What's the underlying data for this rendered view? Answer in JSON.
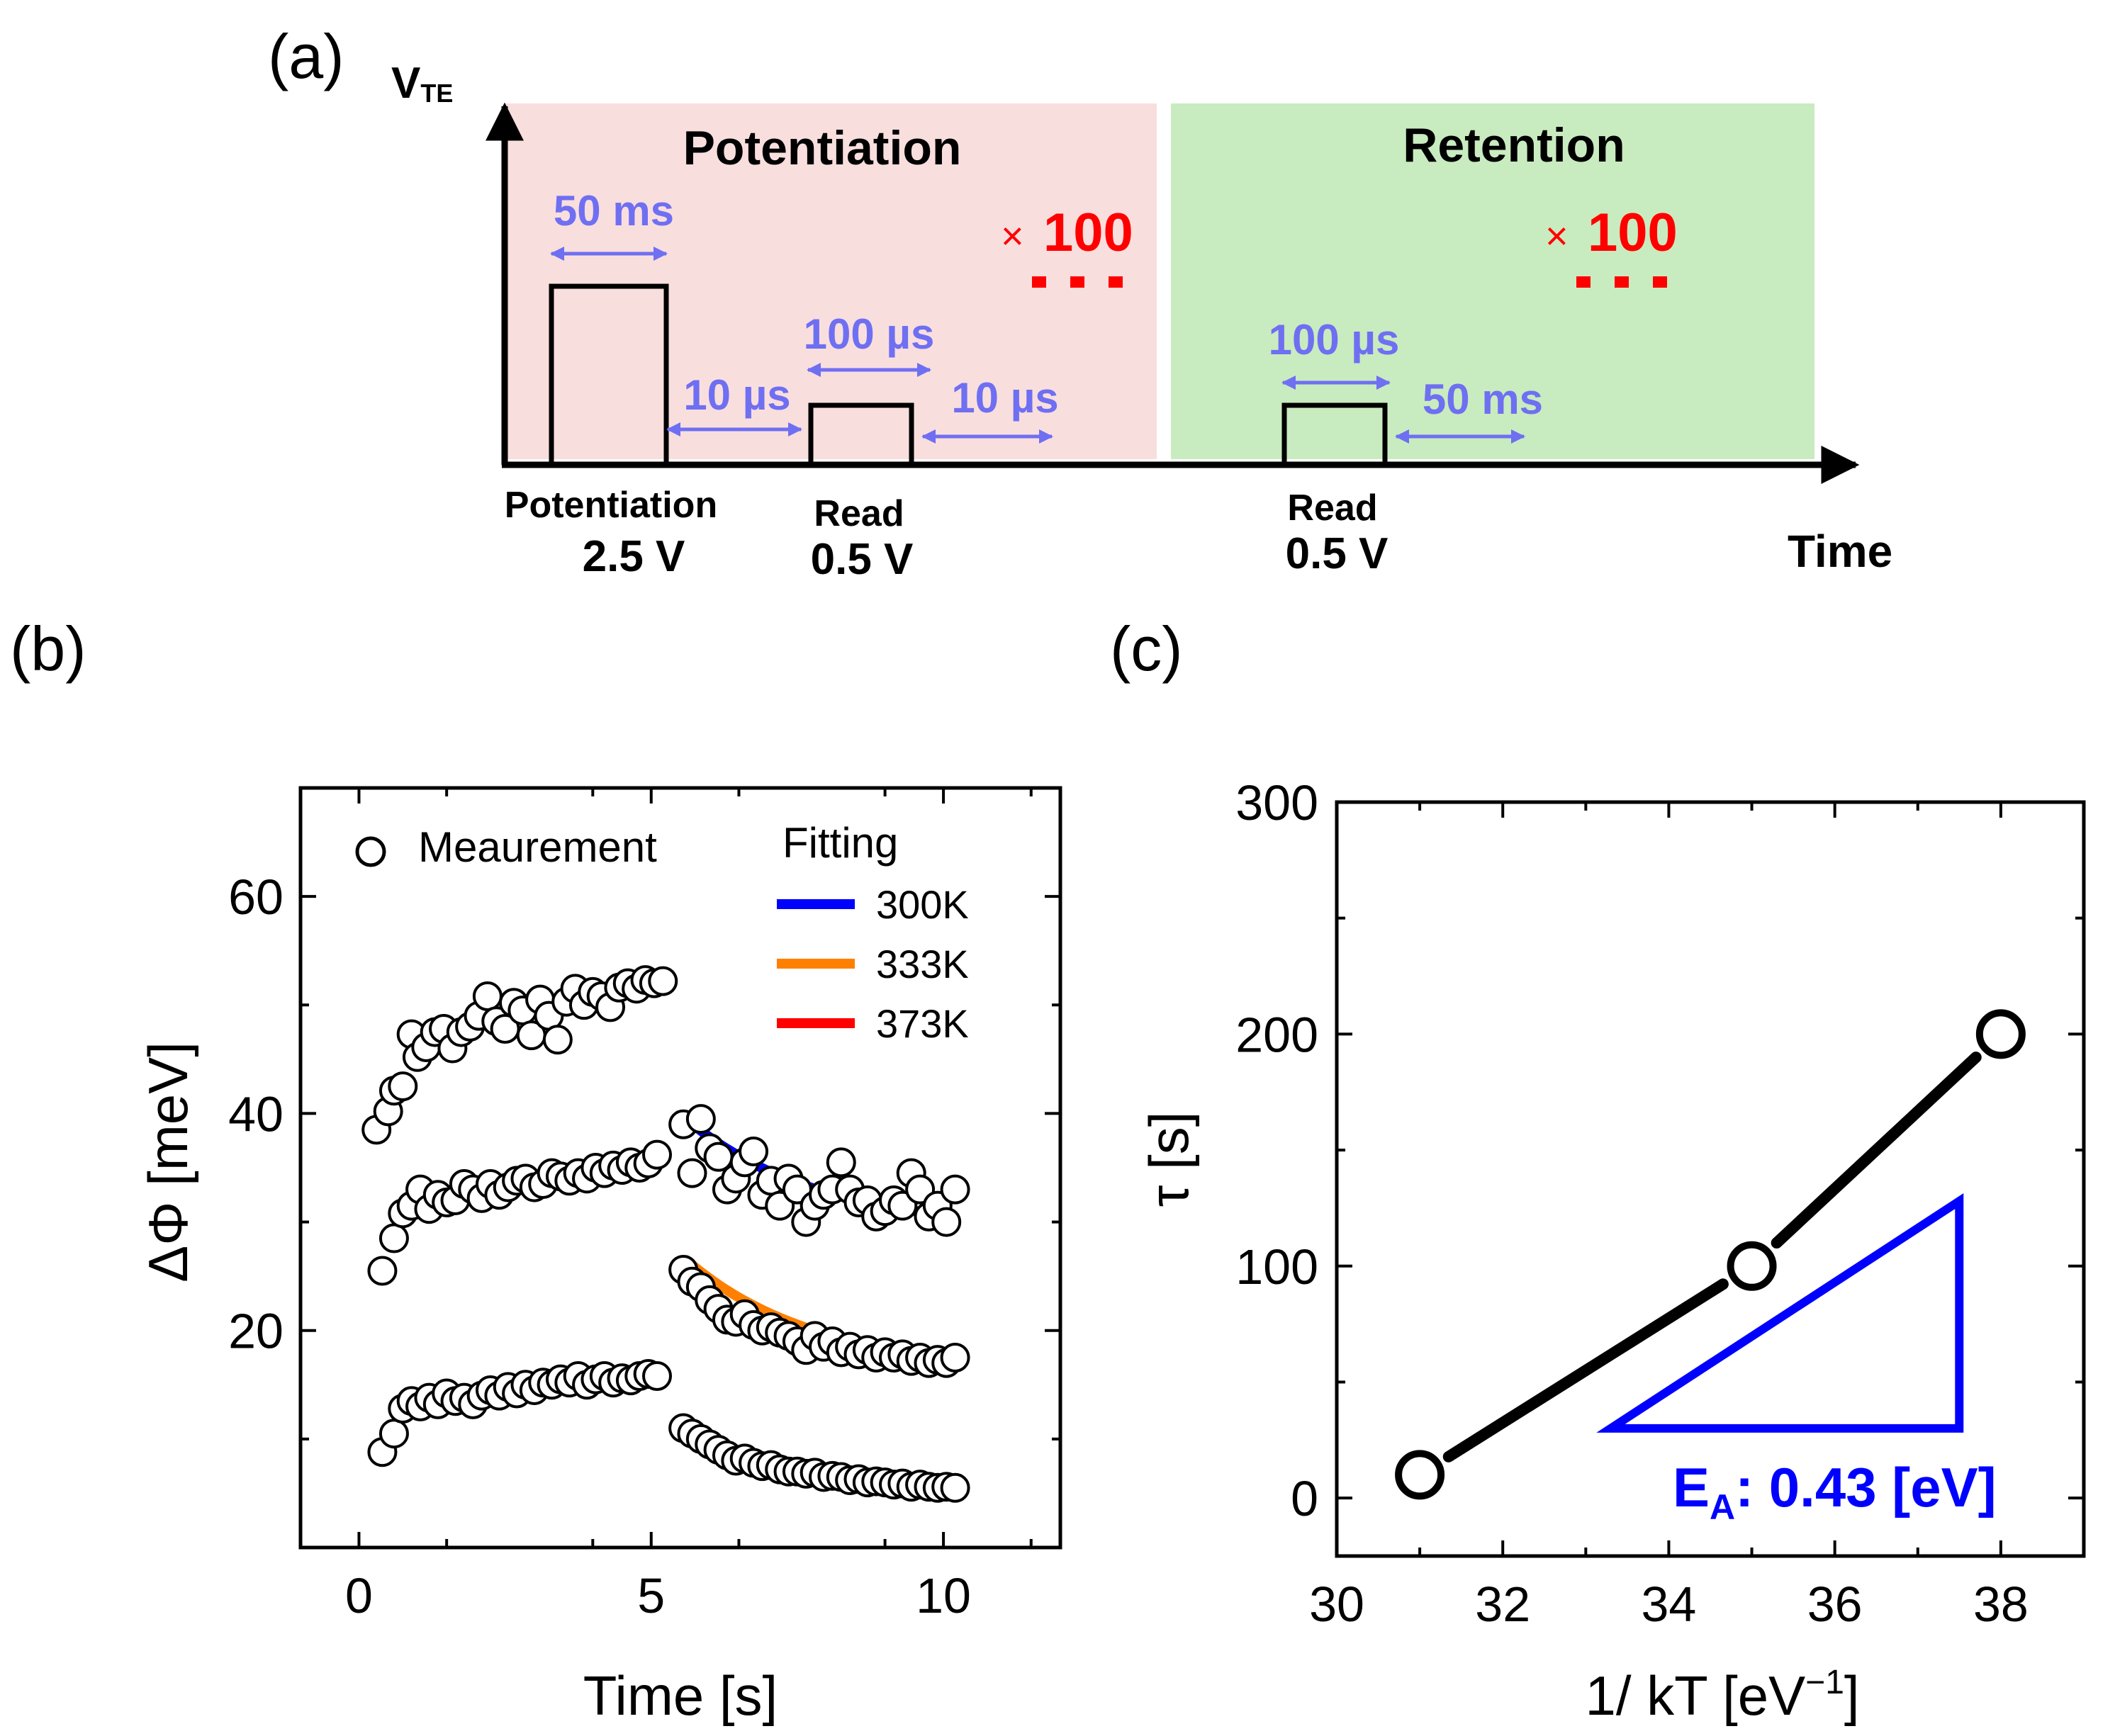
{
  "panel_a": {
    "label": "(a)",
    "y_axis_label": "V",
    "y_axis_sub": "TE",
    "x_axis_label": "Time",
    "colors": {
      "potentiation_bg": "#f9dede",
      "retention_bg": "#c9ebc0",
      "arrow": "#6f6ff2",
      "repeat": "#ff0000"
    },
    "potentiation_title": "Potentiation",
    "retention_title": "Retention",
    "pulse_width_label": "50 ms",
    "gap1_label": "10 µs",
    "read_width_label": "100 µs",
    "gap2_label": "10 µs",
    "pot_repeat_x": "×",
    "pot_repeat_n": "100",
    "ret_read_width_label": "100 µs",
    "ret_gap_label": "50 ms",
    "ret_repeat_x": "×",
    "ret_repeat_n": "100",
    "pulse1_name": "Potentiation",
    "pulse1_volt": "2.5 V",
    "pulse2_name": "Read",
    "pulse2_volt": "0.5 V",
    "pulse3_name": "Read",
    "pulse3_volt": "0.5 V"
  },
  "panel_b": {
    "label": "(b)",
    "legend_meas": "Meaurement",
    "legend_fit_title": "Fitting"
  },
  "panel_c": {
    "label": "(c)",
    "ylabel_tau": "τ",
    "ylabel_unit": "[s]",
    "xlabel_main": "1/ kT [eV",
    "xlabel_sup": "−1",
    "xlabel_end": "]",
    "annotation_main": "E",
    "annotation_sub": "A",
    "annotation_val": ": 0.43 [eV]"
  },
  "chart_data": [
    {
      "type": "scatter",
      "title": "",
      "xlabel": "Time [s]",
      "ylabel": "ΔΦ [meV]",
      "xlim": [
        -1,
        12
      ],
      "ylim": [
        0,
        70
      ],
      "xticks": [
        0,
        5,
        10
      ],
      "yticks": [
        20,
        40,
        60
      ],
      "marker_series": "Meaurement",
      "measurement_series": [
        {
          "name": "300K",
          "x": [
            0.3,
            0.5,
            0.6,
            0.75,
            0.9,
            1.0,
            1.15,
            1.3,
            1.45,
            1.6,
            1.75,
            1.9,
            2.05,
            2.2,
            2.35,
            2.5,
            2.65,
            2.8,
            2.95,
            3.1,
            3.25,
            3.4,
            3.55,
            3.7,
            3.85,
            4.0,
            4.15,
            4.3,
            4.45,
            4.6,
            4.75,
            4.9,
            5.05,
            5.2,
            5.55,
            5.7,
            5.85,
            6.0,
            6.15,
            6.3,
            6.45,
            6.6,
            6.75,
            6.9,
            7.05,
            7.2,
            7.35,
            7.5,
            7.65,
            7.8,
            7.95,
            8.1,
            8.25,
            8.4,
            8.55,
            8.7,
            8.85,
            9.0,
            9.15,
            9.3,
            9.45,
            9.6,
            9.75,
            9.9,
            10.05,
            10.2
          ],
          "y": [
            38.5,
            40.2,
            42.1,
            42.5,
            47.3,
            45.2,
            46.1,
            47.5,
            47.8,
            46.0,
            47.5,
            48.0,
            49.0,
            50.8,
            48.5,
            47.8,
            50.2,
            49.5,
            47.2,
            50.5,
            49.0,
            46.8,
            50.3,
            51.5,
            50.0,
            51.2,
            50.8,
            49.8,
            51.6,
            52.0,
            51.5,
            52.3,
            52.0,
            52.2,
            39.0,
            34.5,
            39.5,
            36.8,
            36.0,
            33.0,
            34.0,
            35.5,
            36.5,
            32.5,
            33.8,
            31.5,
            34.0,
            33.0,
            30.0,
            31.5,
            32.5,
            33.0,
            35.5,
            33.0,
            31.8,
            32.0,
            30.5,
            31.0,
            32.0,
            31.5,
            34.5,
            33.0,
            30.5,
            31.5,
            30.0,
            33.0
          ]
        },
        {
          "name": "333K",
          "x": [
            0.4,
            0.6,
            0.75,
            0.9,
            1.05,
            1.2,
            1.35,
            1.5,
            1.65,
            1.8,
            1.95,
            2.1,
            2.25,
            2.4,
            2.55,
            2.7,
            2.85,
            3.0,
            3.15,
            3.3,
            3.45,
            3.6,
            3.75,
            3.9,
            4.05,
            4.2,
            4.35,
            4.5,
            4.65,
            4.8,
            4.95,
            5.1,
            5.55,
            5.7,
            5.85,
            6.0,
            6.15,
            6.3,
            6.45,
            6.6,
            6.75,
            6.9,
            7.05,
            7.2,
            7.35,
            7.5,
            7.65,
            7.8,
            7.95,
            8.1,
            8.25,
            8.4,
            8.55,
            8.7,
            8.85,
            9.0,
            9.15,
            9.3,
            9.45,
            9.6,
            9.75,
            9.9,
            10.05,
            10.2
          ],
          "y": [
            25.5,
            28.5,
            30.8,
            31.5,
            33.0,
            31.2,
            32.5,
            31.8,
            32.0,
            33.5,
            33.0,
            32.2,
            33.5,
            32.5,
            33.2,
            33.8,
            34.0,
            33.2,
            33.5,
            34.5,
            34.2,
            33.8,
            34.5,
            34.0,
            35.0,
            34.5,
            35.2,
            34.8,
            35.5,
            35.0,
            35.4,
            36.2,
            25.6,
            24.5,
            24.0,
            22.8,
            22.0,
            21.0,
            20.8,
            21.5,
            20.5,
            20.0,
            20.3,
            19.8,
            19.5,
            19.0,
            18.2,
            19.5,
            18.5,
            19.0,
            18.0,
            18.5,
            17.8,
            18.2,
            17.5,
            18.0,
            17.5,
            17.8,
            17.2,
            17.5,
            17.0,
            17.3,
            17.0,
            17.5
          ]
        },
        {
          "name": "373K",
          "x": [
            0.4,
            0.6,
            0.75,
            0.9,
            1.05,
            1.2,
            1.35,
            1.5,
            1.65,
            1.8,
            1.95,
            2.1,
            2.25,
            2.4,
            2.55,
            2.7,
            2.85,
            3.0,
            3.15,
            3.3,
            3.45,
            3.6,
            3.75,
            3.9,
            4.05,
            4.2,
            4.35,
            4.5,
            4.65,
            4.8,
            4.95,
            5.1,
            5.55,
            5.7,
            5.85,
            6.0,
            6.15,
            6.3,
            6.45,
            6.6,
            6.75,
            6.9,
            7.05,
            7.2,
            7.35,
            7.5,
            7.65,
            7.8,
            7.95,
            8.1,
            8.25,
            8.4,
            8.55,
            8.7,
            8.85,
            9.0,
            9.15,
            9.3,
            9.45,
            9.6,
            9.75,
            9.9,
            10.05,
            10.2
          ],
          "y": [
            8.8,
            10.5,
            12.8,
            13.5,
            13.0,
            13.8,
            13.2,
            14.2,
            13.5,
            13.8,
            13.2,
            14.0,
            14.5,
            14.0,
            14.8,
            14.2,
            15.0,
            14.5,
            15.2,
            15.0,
            15.5,
            15.2,
            15.8,
            15.0,
            15.5,
            15.8,
            15.2,
            15.6,
            15.4,
            15.8,
            16.0,
            15.8,
            11.0,
            10.5,
            10.0,
            9.5,
            9.0,
            8.5,
            8.0,
            8.2,
            7.8,
            7.5,
            7.6,
            7.2,
            7.0,
            7.0,
            6.8,
            6.9,
            6.5,
            6.6,
            6.5,
            6.2,
            6.3,
            6.0,
            6.1,
            6.0,
            5.8,
            5.9,
            5.6,
            5.8,
            5.6,
            5.5,
            5.6,
            5.5
          ]
        }
      ],
      "fitting_series": [
        {
          "name": "300K",
          "color": "#0000ff",
          "x_start": 5.6,
          "x_end": 10.1,
          "y_start": 39.5,
          "y_end": 30.6
        },
        {
          "name": "333K",
          "color": "#ff8000",
          "x_start": 5.6,
          "x_end": 10.1,
          "y_start": 26.5,
          "y_end": 17.5
        },
        {
          "name": "373K",
          "color": "#ff0000",
          "x_start": 5.8,
          "x_end": 10.1,
          "y_start": 9.6,
          "y_end": 5.3
        }
      ]
    },
    {
      "type": "line",
      "title": "",
      "xlabel": "1/ kT [eV−1]",
      "ylabel": "τ [s]",
      "xlim": [
        30,
        39
      ],
      "ylim": [
        -25,
        300
      ],
      "xticks": [
        30,
        32,
        34,
        36,
        38
      ],
      "yticks": [
        0,
        100,
        200,
        300
      ],
      "series": [
        {
          "name": "τ",
          "x": [
            31,
            35,
            38
          ],
          "y": [
            10,
            100,
            200
          ]
        }
      ],
      "slope_triangle": {
        "x": [
          33.3,
          37.5,
          37.5
        ],
        "y": [
          30,
          30,
          128
        ],
        "color": "#0000ff"
      },
      "annotation": "EA: 0.43 [eV]"
    }
  ]
}
